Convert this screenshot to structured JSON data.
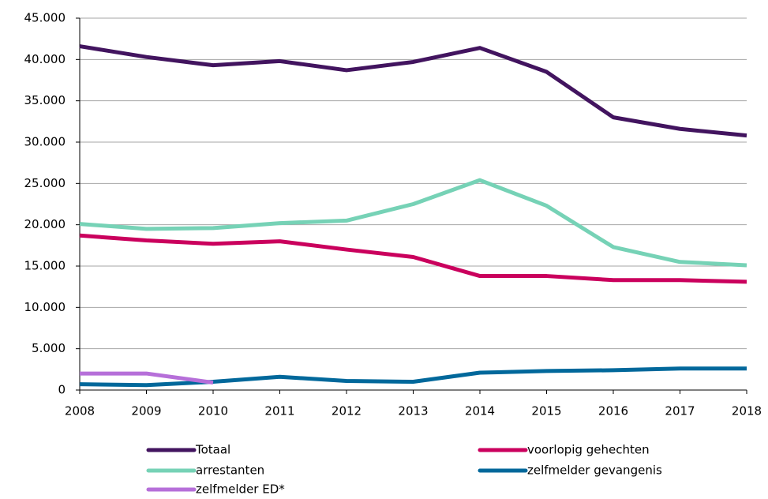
{
  "chart_data": {
    "type": "line",
    "x": [
      2008,
      2009,
      2010,
      2011,
      2012,
      2013,
      2014,
      2015,
      2016,
      2017,
      2018
    ],
    "series": [
      {
        "name": "Totaal",
        "color": "#42145f",
        "values": [
          41600,
          40300,
          39300,
          39800,
          38700,
          39700,
          41400,
          38500,
          33000,
          31600,
          30800
        ]
      },
      {
        "name": "voorlopig gehechten",
        "color": "#ca005d",
        "values": [
          18700,
          18100,
          17700,
          18000,
          17000,
          16100,
          13800,
          13800,
          13300,
          13300,
          13100
        ]
      },
      {
        "name": "arrestanten",
        "color": "#76d2b6",
        "values": [
          20100,
          19500,
          19600,
          20200,
          20500,
          22500,
          25400,
          22300,
          17300,
          15500,
          15100
        ]
      },
      {
        "name": "zelfmelder gevangenis",
        "color": "#01689b",
        "values": [
          700,
          600,
          1000,
          1600,
          1100,
          1000,
          2100,
          2300,
          2400,
          2600,
          2600
        ]
      },
      {
        "name": "zelfmelder ED*",
        "color": "#b66fd9",
        "values": [
          2000,
          2000,
          900,
          null,
          null,
          null,
          null,
          null,
          null,
          null,
          null
        ]
      }
    ],
    "xlim": [
      2008,
      2018
    ],
    "xticks": [
      2008,
      2009,
      2010,
      2011,
      2012,
      2013,
      2014,
      2015,
      2016,
      2017,
      2018
    ],
    "ylim": [
      0,
      45000
    ],
    "yticks": [
      0,
      {
        "value": 5000,
        "label": "5.000"
      },
      {
        "value": 10000,
        "label": "10.000"
      },
      {
        "value": 15000,
        "label": "15.000"
      },
      {
        "value": 20000,
        "label": "20.000"
      },
      {
        "value": 25000,
        "label": "25.000"
      },
      {
        "value": 30000,
        "label": "30.000"
      },
      {
        "value": 35000,
        "label": "35.000"
      },
      {
        "value": 40000,
        "label": "40.000"
      },
      {
        "value": 45000,
        "label": "45.000"
      }
    ],
    "grid": true,
    "legend": "bottom"
  }
}
